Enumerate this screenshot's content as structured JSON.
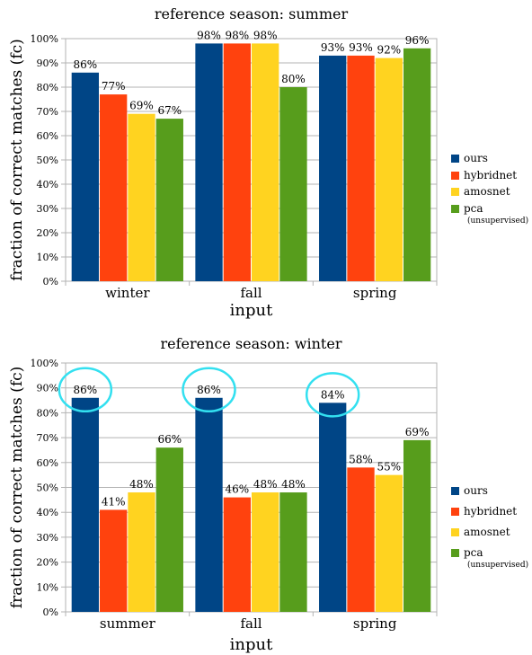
{
  "chart_data": [
    {
      "type": "bar",
      "title": "reference season: summer",
      "xlabel": "input",
      "ylabel": "fraction of correct matches (fc)",
      "ylim": [
        0,
        100
      ],
      "ytick_step": 10,
      "ytick_suffix": "%",
      "grid": true,
      "legend_position": "right",
      "categories": [
        "winter",
        "fall",
        "spring"
      ],
      "series": [
        {
          "name": "ours",
          "color": "#004586",
          "values": [
            86,
            98,
            93
          ]
        },
        {
          "name": "hybridnet",
          "color": "#ff420e",
          "values": [
            77,
            98,
            93
          ]
        },
        {
          "name": "amosnet",
          "color": "#ffd320",
          "values": [
            69,
            98,
            92
          ]
        },
        {
          "name": "pca",
          "note": "(unsupervised)",
          "color": "#579d1c",
          "values": [
            67,
            80,
            96
          ]
        }
      ],
      "annotations": []
    },
    {
      "type": "bar",
      "title": "reference season: winter",
      "xlabel": "input",
      "ylabel": "fraction of correct matches (fc)",
      "ylim": [
        0,
        100
      ],
      "ytick_step": 10,
      "ytick_suffix": "%",
      "grid": true,
      "legend_position": "right",
      "categories": [
        "summer",
        "fall",
        "spring"
      ],
      "series": [
        {
          "name": "ours",
          "color": "#004586",
          "values": [
            86,
            86,
            84
          ]
        },
        {
          "name": "hybridnet",
          "color": "#ff420e",
          "values": [
            41,
            46,
            58
          ]
        },
        {
          "name": "amosnet",
          "color": "#ffd320",
          "values": [
            48,
            48,
            55
          ]
        },
        {
          "name": "pca",
          "note": "(unsupervised)",
          "color": "#579d1c",
          "values": [
            66,
            48,
            69
          ]
        }
      ],
      "annotations": [
        {
          "type": "circle",
          "series": "ours",
          "category": "summer",
          "color": "#33e0f0"
        },
        {
          "type": "circle",
          "series": "ours",
          "category": "fall",
          "color": "#33e0f0"
        },
        {
          "type": "circle",
          "series": "ours",
          "category": "spring",
          "color": "#33e0f0"
        }
      ]
    }
  ]
}
